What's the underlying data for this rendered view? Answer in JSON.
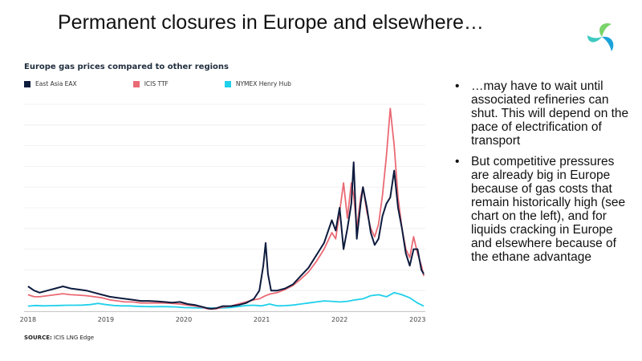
{
  "slide": {
    "title": "Permanent closures in Europe and elsewhere…",
    "bullets": [
      "…may have to wait until associated refineries can shut. This will depend on the pace of electrification of transport",
      "But competitive pressures are already big in Europe because of gas costs that remain historically high (see chart on the left), and for liquids cracking in Europe and elsewhere because of the ethane advantage"
    ],
    "logo_icon": "swirl-logo-icon",
    "source_label": "SOURCE:",
    "source_text": " ICIS LNG Edge"
  },
  "chart_data": {
    "type": "line",
    "title": "Europe gas prices compared to other regions",
    "xlabel": "",
    "ylabel": "",
    "x_ticks": [
      "2018",
      "2019",
      "2020",
      "2021",
      "2022",
      "2023"
    ],
    "x_range": [
      2017.95,
      2023.1
    ],
    "y_range": [
      0,
      100
    ],
    "grid": true,
    "legend_position": "top-left",
    "series": [
      {
        "name": "East Asia EAX",
        "color": "#0d1b3d",
        "x": [
          2018.0,
          2018.08,
          2018.15,
          2018.25,
          2018.35,
          2018.45,
          2018.55,
          2018.65,
          2018.75,
          2018.85,
          2018.95,
          2019.05,
          2019.15,
          2019.25,
          2019.35,
          2019.45,
          2019.55,
          2019.65,
          2019.75,
          2019.85,
          2019.95,
          2020.05,
          2020.15,
          2020.25,
          2020.3,
          2020.35,
          2020.42,
          2020.5,
          2020.6,
          2020.7,
          2020.8,
          2020.9,
          2020.97,
          2021.02,
          2021.05,
          2021.08,
          2021.12,
          2021.2,
          2021.3,
          2021.4,
          2021.5,
          2021.6,
          2021.7,
          2021.8,
          2021.9,
          2021.95,
          2022.0,
          2022.05,
          2022.1,
          2022.15,
          2022.18,
          2022.22,
          2022.27,
          2022.3,
          2022.35,
          2022.4,
          2022.45,
          2022.5,
          2022.55,
          2022.6,
          2022.65,
          2022.7,
          2022.75,
          2022.8,
          2022.85,
          2022.9,
          2022.95,
          2023.0,
          2023.05,
          2023.08
        ],
        "y": [
          12,
          10,
          9,
          10,
          11,
          12,
          11,
          10.5,
          10,
          9,
          8,
          7,
          6.5,
          6,
          5.5,
          5,
          5,
          4.8,
          4.5,
          4.2,
          4.5,
          3.5,
          3,
          2,
          1.5,
          1.2,
          1.5,
          2.5,
          2.5,
          3,
          4,
          6,
          10,
          22,
          33,
          18,
          10,
          10,
          11,
          13,
          17,
          21,
          27,
          33,
          44,
          39,
          50,
          30,
          40,
          52,
          72,
          35,
          52,
          60,
          50,
          38,
          32,
          35,
          46,
          52,
          55,
          68,
          50,
          40,
          28,
          22,
          30,
          30,
          20,
          18
        ]
      },
      {
        "name": "ICIS TTF",
        "color": "#ea6a75",
        "x": [
          2018.0,
          2018.08,
          2018.15,
          2018.25,
          2018.35,
          2018.45,
          2018.55,
          2018.65,
          2018.75,
          2018.85,
          2018.95,
          2019.05,
          2019.15,
          2019.25,
          2019.35,
          2019.45,
          2019.55,
          2019.65,
          2019.75,
          2019.85,
          2019.95,
          2020.05,
          2020.15,
          2020.25,
          2020.3,
          2020.35,
          2020.42,
          2020.5,
          2020.6,
          2020.7,
          2020.8,
          2020.9,
          2020.97,
          2021.02,
          2021.05,
          2021.08,
          2021.12,
          2021.2,
          2021.3,
          2021.4,
          2021.5,
          2021.6,
          2021.7,
          2021.8,
          2021.9,
          2021.95,
          2022.0,
          2022.05,
          2022.1,
          2022.15,
          2022.18,
          2022.22,
          2022.27,
          2022.3,
          2022.35,
          2022.4,
          2022.45,
          2022.5,
          2022.55,
          2022.6,
          2022.65,
          2022.7,
          2022.75,
          2022.8,
          2022.85,
          2022.9,
          2022.95,
          2023.0,
          2023.05,
          2023.08
        ],
        "y": [
          8,
          7,
          7,
          7.5,
          8,
          8.5,
          8,
          7.8,
          7.5,
          7,
          6.5,
          5.5,
          5,
          4.5,
          4.5,
          4,
          4,
          4,
          4,
          3.8,
          3.5,
          3,
          2.5,
          1.8,
          1.2,
          1,
          1.2,
          2,
          2.5,
          3.5,
          4.5,
          5.5,
          6,
          7,
          7.5,
          8,
          8.5,
          9,
          10.5,
          12.5,
          15.5,
          19,
          24,
          30,
          38,
          35,
          48,
          62,
          45,
          62,
          56,
          40,
          55,
          60,
          48,
          40,
          36,
          42,
          56,
          75,
          98,
          80,
          55,
          40,
          30,
          26,
          36,
          28,
          22,
          17
        ]
      },
      {
        "name": "NYMEX Henry Hub",
        "color": "#1fd0ea",
        "x": [
          2018.0,
          2018.1,
          2018.2,
          2018.3,
          2018.4,
          2018.5,
          2018.6,
          2018.7,
          2018.8,
          2018.9,
          2019.0,
          2019.1,
          2019.2,
          2019.3,
          2019.4,
          2019.5,
          2019.6,
          2019.7,
          2019.8,
          2019.9,
          2020.0,
          2020.1,
          2020.2,
          2020.3,
          2020.4,
          2020.5,
          2020.6,
          2020.7,
          2020.8,
          2020.9,
          2021.0,
          2021.1,
          2021.2,
          2021.3,
          2021.4,
          2021.5,
          2021.6,
          2021.7,
          2021.8,
          2021.9,
          2022.0,
          2022.1,
          2022.2,
          2022.3,
          2022.4,
          2022.5,
          2022.6,
          2022.7,
          2022.8,
          2022.9,
          2023.0,
          2023.08
        ],
        "y": [
          2.5,
          2.8,
          2.6,
          2.7,
          2.8,
          2.9,
          2.9,
          3,
          3.2,
          3.8,
          3.2,
          2.8,
          2.6,
          2.6,
          2.4,
          2.3,
          2.2,
          2.3,
          2.2,
          2.1,
          1.8,
          1.7,
          1.6,
          1.6,
          1.5,
          1.6,
          1.8,
          2.3,
          2.8,
          2.9,
          2.6,
          3.5,
          2.6,
          2.7,
          3,
          3.5,
          4,
          4.5,
          5,
          4.8,
          4.5,
          4.8,
          5.5,
          6,
          7.5,
          8,
          7,
          9,
          8,
          6.5,
          4,
          2.5
        ]
      }
    ]
  }
}
